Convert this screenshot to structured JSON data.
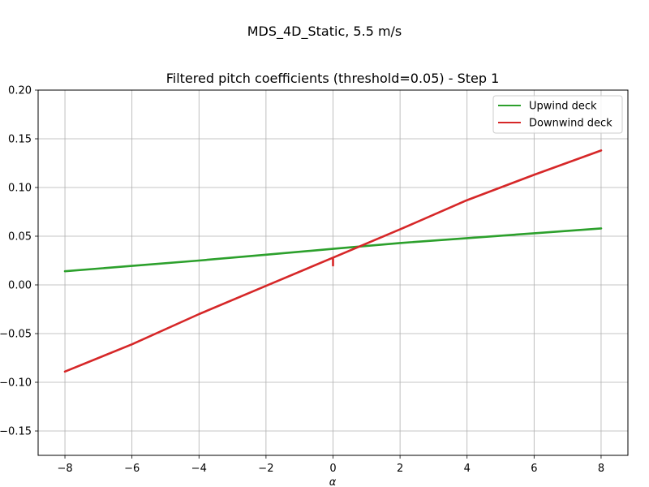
{
  "figure": {
    "suptitle": "MDS_4D_Static, 5.5 m/s"
  },
  "chart_data": {
    "type": "line",
    "title": "Filtered pitch coefficients (threshold=0.05) - Step 1",
    "xlabel": "α",
    "ylabel": "",
    "xlim": [
      -8.8,
      8.8
    ],
    "ylim": [
      -0.175,
      0.2
    ],
    "x_ticks": [
      -8,
      -6,
      -4,
      -2,
      0,
      2,
      4,
      6,
      8
    ],
    "x_tick_labels": [
      "−8",
      "−6",
      "−4",
      "−2",
      "0",
      "2",
      "4",
      "6",
      "8"
    ],
    "y_ticks": [
      -0.15,
      -0.1,
      -0.05,
      0.0,
      0.05,
      0.1,
      0.15,
      0.2
    ],
    "y_tick_labels": [
      "−0.15",
      "−0.10",
      "−0.05",
      "0.00",
      "0.05",
      "0.10",
      "0.15",
      "0.20"
    ],
    "grid": true,
    "legend_position": "top-right",
    "series": [
      {
        "name": "Upwind deck",
        "color": "#2ca02c",
        "x": [
          -8,
          -6,
          -4,
          -2,
          0,
          2,
          4,
          6,
          8
        ],
        "y": [
          0.014,
          0.0195,
          0.025,
          0.031,
          0.037,
          0.043,
          0.048,
          0.053,
          0.058
        ]
      },
      {
        "name": "Downwind deck",
        "color": "#d62728",
        "x": [
          -8,
          -6,
          -4,
          -2,
          0,
          0,
          0,
          2,
          4,
          6,
          8
        ],
        "y": [
          -0.089,
          -0.061,
          -0.03,
          -0.001,
          0.028,
          0.02,
          0.028,
          0.057,
          0.087,
          0.113,
          0.138
        ]
      }
    ]
  }
}
